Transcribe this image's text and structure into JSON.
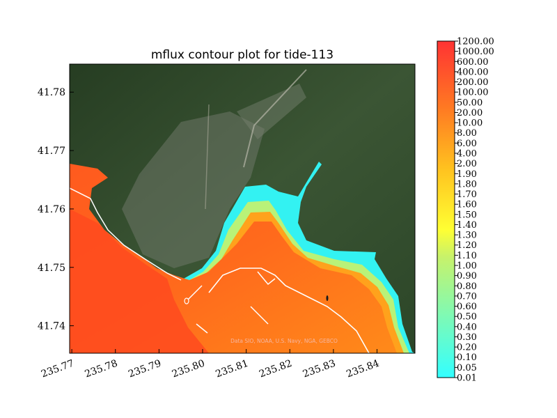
{
  "chart_data": {
    "type": "heatmap",
    "title": "mflux contour plot for tide-113",
    "xlabel": "",
    "ylabel": "",
    "x_ticks": [
      "235.77",
      "235.78",
      "235.79",
      "235.80",
      "235.81",
      "235.82",
      "235.83",
      "235.84"
    ],
    "y_ticks": [
      "41.78",
      "41.77",
      "41.76",
      "41.75",
      "41.74"
    ],
    "x_tick_values": [
      235.77,
      235.78,
      235.79,
      235.8,
      235.81,
      235.82,
      235.83,
      235.84
    ],
    "y_tick_values": [
      41.78,
      41.77,
      41.76,
      41.75,
      41.74
    ],
    "xlim": [
      235.7695,
      235.8487
    ],
    "ylim": [
      41.7353,
      41.7848
    ],
    "colorbar": {
      "levels": [
        "0.01",
        "0.05",
        "0.10",
        "0.20",
        "0.30",
        "0.40",
        "0.50",
        "0.60",
        "0.70",
        "0.80",
        "0.90",
        "1.00",
        "1.10",
        "1.20",
        "1.30",
        "1.40",
        "1.50",
        "1.60",
        "1.70",
        "1.80",
        "1.90",
        "2.00",
        "4.00",
        "6.00",
        "8.00",
        "10.00",
        "20.00",
        "50.00",
        "100.00",
        "200.00",
        "400.00",
        "600.00",
        "1000.00",
        "1200.00"
      ],
      "colormap": [
        "#33ffff",
        "#7dfab6",
        "#c8f26a",
        "#ffff33",
        "#ffb31a",
        "#ff3333"
      ]
    },
    "attribution": "Data SIO, NOAA, U.S. Navy, NGA, GEBCO",
    "colors": {
      "low": "#33ffff",
      "mid": "#ffff33",
      "high": "#ff3333",
      "land": "#2d4a2a",
      "coastline": "#ffffff"
    }
  }
}
